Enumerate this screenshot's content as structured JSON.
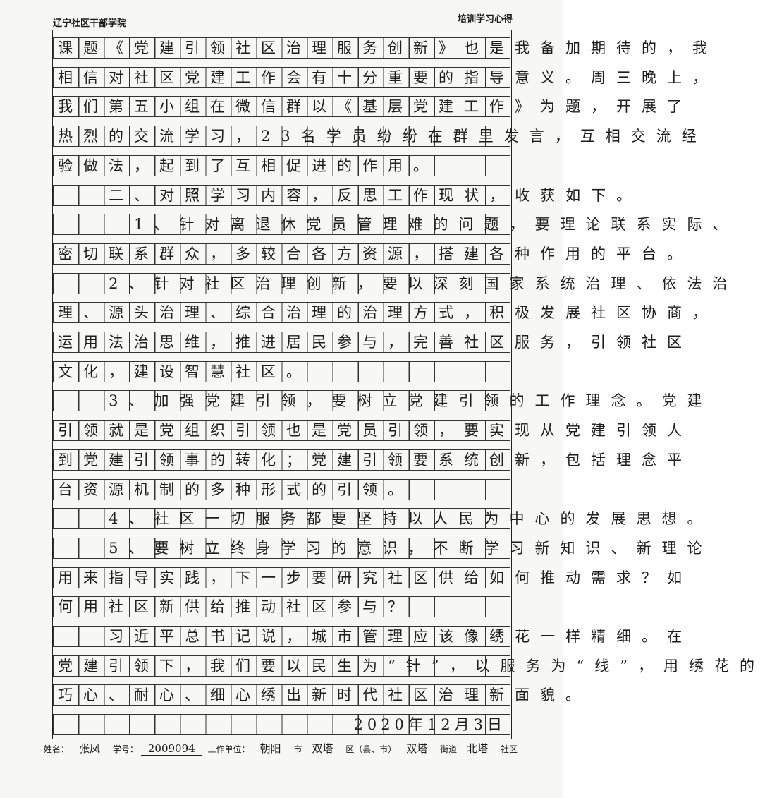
{
  "header": {
    "institution": "辽宁社区干部学院",
    "doc_type": "培训学习心得"
  },
  "lines": [
    {
      "indent": 0,
      "text": "课题《党建引领社区治理服务创新》也是我备加期待的，我"
    },
    {
      "indent": 0,
      "text": "相信对社区党建工作会有十分重要的指导意义。周三晚上，"
    },
    {
      "indent": 0,
      "text": "我们第五小组在微信群以《基层党建工作》为题，开展了"
    },
    {
      "indent": 0,
      "text": "热烈的交流学习，23名学员纷纷在群里发言，互相交流经"
    },
    {
      "indent": 0,
      "text": "验做法，起到了互相促进的作用。"
    },
    {
      "indent": 2,
      "text": "二、对照学习内容，反思工作现状，收获如下。"
    },
    {
      "indent": 3,
      "text": "1、针对离退休党员管理难的问题，要理论联系实际、"
    },
    {
      "indent": 0,
      "text": "密切联系群众，多较合各方资源，搭建各种作用的平台。"
    },
    {
      "indent": 2,
      "text": "2、针对社区治理创新，要以深刻国家系统治理、依法治"
    },
    {
      "indent": 0,
      "text": "理、源头治理、综合治理的治理方式，积极发展社区协商，"
    },
    {
      "indent": 0,
      "text": "运用法治思维，推进居民参与，完善社区服务，引领社区"
    },
    {
      "indent": 0,
      "text": "文化，建设智慧社区。"
    },
    {
      "indent": 2,
      "text": "3、加强党建引领，要树立党建引领的工作理念。党建"
    },
    {
      "indent": 0,
      "text": "引领就是党组织引领也是党员引领，要实现从党建引领人"
    },
    {
      "indent": 0,
      "text": "到党建引领事的转化；党建引领要系统创新，包括理念平"
    },
    {
      "indent": 0,
      "text": "台资源机制的多种形式的引领。"
    },
    {
      "indent": 2,
      "text": "4、社区一切服务都要坚持以人民为中心的发展思想。"
    },
    {
      "indent": 2,
      "text": "5、要树立终身学习的意识，不断学习新知识、新理论"
    },
    {
      "indent": 0,
      "text": "用来指导实践，下一步要研究社区供给如何推动需求？如"
    },
    {
      "indent": 0,
      "text": "何用社区新供给推动社区参与？"
    },
    {
      "indent": 2,
      "text": "习近平总书记说，城市管理应该像绣花一样精细。在"
    },
    {
      "indent": 0,
      "text": "党建引领下，我们要以民生为“针”，以服务为“线”，用绣花的"
    },
    {
      "indent": 0,
      "text": "巧心、耐心、细心绣出新时代社区治理新面貌。"
    }
  ],
  "date": "2020年12月3日",
  "footer": {
    "name_label": "姓名：",
    "name": "张凤",
    "id_label": "学号：",
    "id": "2009094",
    "work_label": "工作单位：",
    "city": "朝阳",
    "city_suffix": "市",
    "district": "双塔",
    "district_suffix": "区（县、市）",
    "street": "双塔",
    "street_suffix": "街道",
    "community": "北塔",
    "community_suffix": "社区"
  }
}
